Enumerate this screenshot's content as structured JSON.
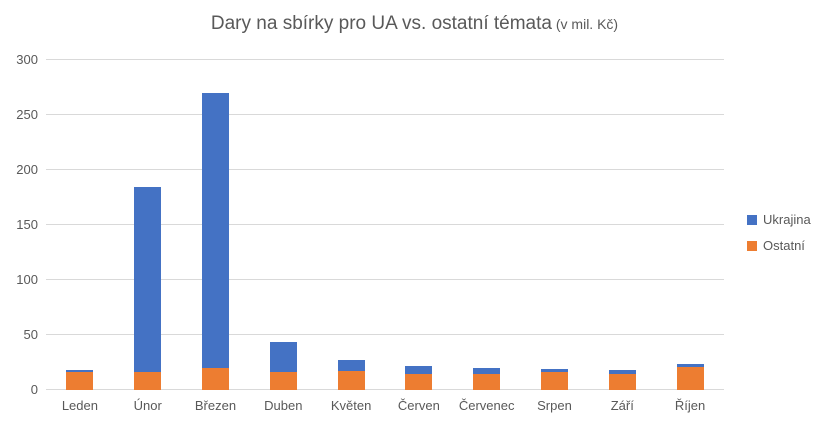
{
  "title": {
    "main": "Dary na sbírky pro UA vs. ostatní témata",
    "suffix": " (v mil. Kč)"
  },
  "chart_data": {
    "type": "bar",
    "stacked": true,
    "title": "Dary na sbírky pro UA vs. ostatní témata (v mil. Kč)",
    "value_unit": "mil. Kč",
    "categories": [
      "Leden",
      "Únor",
      "Březen",
      "Duben",
      "Květen",
      "Červen",
      "Červenec",
      "Srpen",
      "Září",
      "Říjen"
    ],
    "series": [
      {
        "name": "Ukrajina",
        "color": "#4472C4",
        "values": [
          2,
          169,
          250,
          28,
          10,
          7,
          5,
          3,
          3,
          3
        ]
      },
      {
        "name": "Ostatní",
        "color": "#ED7D31",
        "values": [
          16,
          16,
          20,
          16,
          17,
          15,
          15,
          16,
          15,
          21
        ]
      }
    ],
    "stack_order_bottom_to_top": [
      "Ostatní",
      "Ukrajina"
    ],
    "ylim": [
      0,
      300
    ],
    "yticks": [
      0,
      50,
      100,
      150,
      200,
      250,
      300
    ],
    "grid": true,
    "legend_position": "right",
    "colors": {
      "grid": "#D9D9D9",
      "axis_text": "#595959",
      "title_text": "#595959",
      "background": "#FFFFFF"
    }
  }
}
